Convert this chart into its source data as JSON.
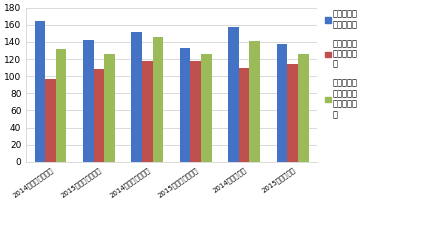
{
  "categories": [
    "2014年本期判断指数",
    "2015年本期判断指数",
    "2014年下期预期指数",
    "2015年下期预期指数",
    "2014年信心指数",
    "2015年信心指数"
  ],
  "series": [
    {
      "name": "产业园区整\n体景气状况",
      "values": [
        165,
        142,
        152,
        133,
        157,
        137
      ],
      "color": "#4472C4"
    },
    {
      "name": "园区及主要\n企业经营状\n况",
      "values": [
        97,
        108,
        118,
        118,
        109,
        114
      ],
      "color": "#C0504D"
    },
    {
      "name": "产业园区总\n体吸引投资\n落户能力状\n况",
      "values": [
        132,
        126,
        146,
        126,
        141,
        126
      ],
      "color": "#9BBB59"
    }
  ],
  "ylim": [
    0,
    180
  ],
  "yticks": [
    0,
    20,
    40,
    60,
    80,
    100,
    120,
    140,
    160,
    180
  ],
  "background_color": "#FFFFFF",
  "plot_bg_color": "#FFFFFF",
  "grid_color": "#CCCCCC",
  "bar_width": 0.22,
  "xlabel_fontsize": 5.0,
  "tick_fontsize": 6.5,
  "legend_fontsize": 6.0
}
